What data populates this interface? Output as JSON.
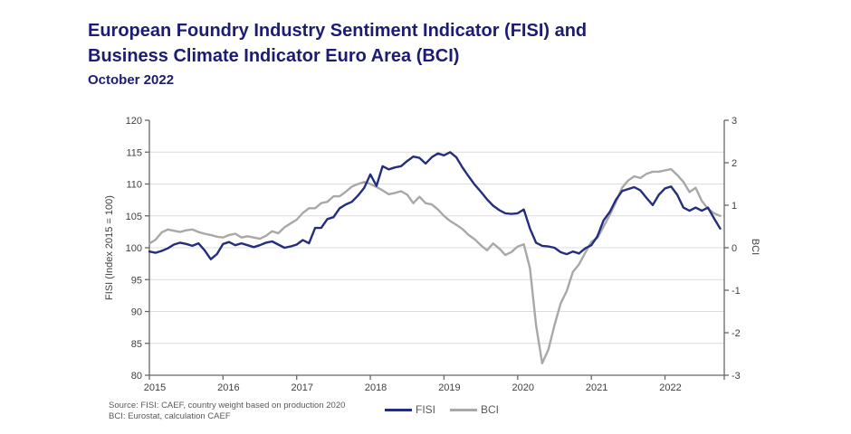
{
  "header": {
    "title_line1": "European Foundry Industry Sentiment Indicator (FISI) and",
    "title_line2": "Business Climate Indicator Euro Area (BCI)",
    "subtitle": "October 2022"
  },
  "colors": {
    "title_navy": "#1c1c72",
    "fisi_line": "#242e7c",
    "bci_line": "#a8a8a8",
    "gridline": "#dcdcdc",
    "axis": "#666666",
    "tick_label": "#404040",
    "text_gray": "#595959"
  },
  "chart_data": {
    "type": "line",
    "title": "European Foundry Industry Sentiment Indicator (FISI) and Business Climate Indicator Euro Area (BCI), October 2022",
    "frequency": "monthly",
    "x_start": "2015-01",
    "x_end": "2022-10",
    "x_tick_labels": [
      "2015",
      "2016",
      "2017",
      "2018",
      "2019",
      "2020",
      "2021",
      "2022"
    ],
    "grid": "horizontal",
    "legend_position": "bottom-center",
    "left_axis": {
      "label": "FISI (Index 2015 = 100)",
      "min": 80,
      "max": 120,
      "ticks": [
        80,
        85,
        90,
        95,
        100,
        105,
        110,
        115,
        120
      ]
    },
    "right_axis": {
      "label": "BCI",
      "min": -3,
      "max": 3,
      "ticks": [
        3,
        2,
        1,
        0,
        -1,
        -2,
        -3
      ]
    },
    "series": [
      {
        "name": "FISI",
        "axis": "left",
        "color": "#242e7c",
        "values": [
          99.4,
          99.2,
          99.5,
          99.9,
          100.5,
          100.8,
          100.6,
          100.3,
          100.7,
          99.6,
          98.2,
          99.0,
          100.6,
          100.9,
          100.4,
          100.7,
          100.4,
          100.1,
          100.4,
          100.8,
          101.0,
          100.5,
          100.0,
          100.2,
          100.5,
          101.2,
          100.7,
          103.1,
          103.1,
          104.5,
          104.8,
          106.2,
          106.8,
          107.2,
          108.2,
          109.4,
          111.5,
          109.7,
          112.8,
          112.3,
          112.6,
          112.8,
          113.6,
          114.3,
          114.1,
          113.2,
          114.2,
          114.8,
          114.5,
          115.0,
          114.2,
          112.6,
          111.2,
          109.9,
          108.8,
          107.6,
          106.6,
          105.9,
          105.4,
          105.3,
          105.4,
          106.0,
          103.0,
          100.8,
          100.3,
          100.2,
          100.0,
          99.3,
          99.0,
          99.4,
          99.1,
          99.9,
          100.4,
          101.8,
          104.3,
          105.6,
          107.5,
          108.9,
          109.2,
          109.5,
          109.0,
          107.8,
          106.7,
          108.3,
          109.3,
          109.6,
          108.3,
          106.3,
          105.8,
          106.3,
          105.8,
          106.3,
          104.6,
          103.0
        ]
      },
      {
        "name": "BCI",
        "axis": "right",
        "color": "#a8a8a8",
        "values": [
          0.1,
          0.19,
          0.36,
          0.43,
          0.4,
          0.37,
          0.41,
          0.43,
          0.37,
          0.33,
          0.3,
          0.26,
          0.24,
          0.3,
          0.33,
          0.24,
          0.27,
          0.24,
          0.21,
          0.28,
          0.39,
          0.34,
          0.48,
          0.57,
          0.66,
          0.82,
          0.93,
          0.93,
          1.05,
          1.08,
          1.21,
          1.21,
          1.32,
          1.44,
          1.5,
          1.55,
          1.5,
          1.43,
          1.35,
          1.26,
          1.29,
          1.33,
          1.25,
          1.05,
          1.2,
          1.05,
          1.02,
          0.9,
          0.75,
          0.63,
          0.54,
          0.44,
          0.3,
          0.2,
          0.06,
          -0.06,
          0.1,
          -0.02,
          -0.17,
          -0.1,
          0.03,
          0.08,
          -0.48,
          -1.82,
          -2.72,
          -2.4,
          -1.82,
          -1.31,
          -1.02,
          -0.57,
          -0.39,
          -0.12,
          0.14,
          0.23,
          0.5,
          0.77,
          1.07,
          1.41,
          1.58,
          1.68,
          1.64,
          1.74,
          1.79,
          1.79,
          1.82,
          1.85,
          1.71,
          1.55,
          1.31,
          1.41,
          1.1,
          0.92,
          0.81,
          0.75
        ]
      }
    ]
  },
  "legend": {
    "items": [
      {
        "label": "FISI"
      },
      {
        "label": "BCI"
      }
    ]
  },
  "source": {
    "line1": "Source: FISI: CAEF, country weight based on production 2020",
    "line2": "BCI: Eurostat, calculation CAEF"
  }
}
